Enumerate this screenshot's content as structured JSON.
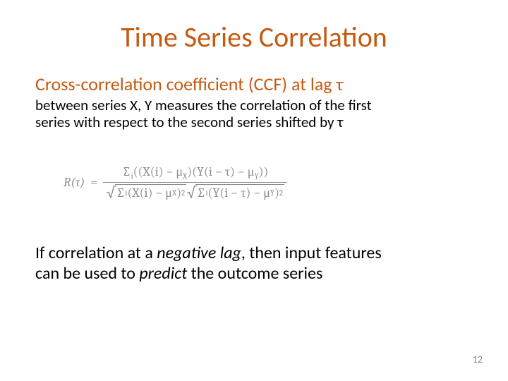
{
  "title": {
    "text": "Time Series Correlation",
    "color": "#c55a11",
    "fontsize": 40
  },
  "subheading": {
    "text": "Cross-correlation coefficient (CCF) at lag τ",
    "color": "#c55a11",
    "fontsize": 26
  },
  "body1": {
    "line1": "between series X, Y measures the correlation of the first",
    "line2": "series with respect to the second series shifted by τ",
    "fontsize": 21,
    "color": "#000000"
  },
  "formula": {
    "lhs": "R(τ)",
    "eq": "=",
    "num_sum": "∑",
    "num_sub": "i",
    "num_open": "((X(i) − μ",
    "num_muX": "X",
    "num_mid": ")(Y(i − τ) − μ",
    "num_muY": "Y",
    "num_close": "))",
    "den_sqrt1_sum": "∑",
    "den_sqrt1_sub": "i",
    "den_sqrt1_body": " (X(i) − μ",
    "den_sqrt1_muX": "X",
    "den_sqrt1_close": ")",
    "den_sqrt1_pow": "2",
    "den_sqrt2_sum": "∑",
    "den_sqrt2_sub": "i",
    "den_sqrt2_body": " (Y(i − τ) − μ",
    "den_sqrt2_muY": "Y",
    "den_sqrt2_close": ")",
    "den_sqrt2_pow": "2",
    "color": "#8a8d95",
    "fontsize": 18
  },
  "closing": {
    "part1": "If correlation at a ",
    "emph1": "negative lag",
    "part2": ", then input features",
    "part3": "can be used to ",
    "emph2": "predict",
    "part4": " the outcome series",
    "fontsize": 24,
    "color": "#000000"
  },
  "pageNumber": "12"
}
